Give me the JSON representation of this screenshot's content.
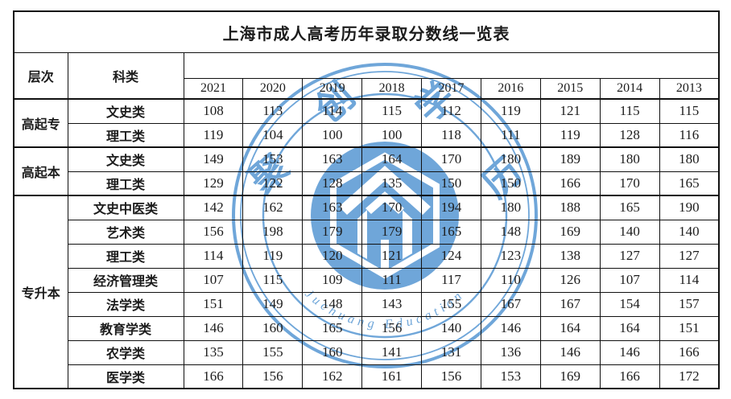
{
  "page": {
    "background": "#ffffff",
    "text_color": "#1c1c1c",
    "border_color": "#111111"
  },
  "table": {
    "title": "上海市成人高考历年录取分数线一览表",
    "level_header": "层次",
    "category_header": "科类",
    "years": [
      "2021",
      "2020",
      "2019",
      "2018",
      "2017",
      "2016",
      "2015",
      "2014",
      "2013"
    ],
    "groups": [
      {
        "level": "高起专",
        "rows": [
          {
            "category": "文史类",
            "values": [
              108,
              113,
              114,
              115,
              112,
              119,
              121,
              115,
              115
            ]
          },
          {
            "category": "理工类",
            "values": [
              119,
              104,
              100,
              100,
              118,
              111,
              119,
              128,
              116
            ]
          }
        ]
      },
      {
        "level": "高起本",
        "rows": [
          {
            "category": "文史类",
            "values": [
              149,
              153,
              163,
              164,
              170,
              180,
              189,
              180,
              180
            ]
          },
          {
            "category": "理工类",
            "values": [
              129,
              122,
              128,
              135,
              150,
              150,
              166,
              170,
              165
            ]
          }
        ]
      },
      {
        "level": "专升本",
        "rows": [
          {
            "category": "文史中医类",
            "values": [
              142,
              162,
              163,
              170,
              194,
              180,
              188,
              165,
              190
            ]
          },
          {
            "category": "艺术类",
            "values": [
              156,
              198,
              179,
              179,
              165,
              148,
              169,
              140,
              140
            ]
          },
          {
            "category": "理工类",
            "values": [
              114,
              119,
              120,
              121,
              124,
              123,
              138,
              127,
              127
            ]
          },
          {
            "category": "经济管理类",
            "values": [
              107,
              115,
              109,
              111,
              117,
              110,
              126,
              107,
              114
            ]
          },
          {
            "category": "法学类",
            "values": [
              151,
              149,
              148,
              143,
              155,
              167,
              167,
              154,
              157
            ]
          },
          {
            "category": "教育学类",
            "values": [
              146,
              160,
              165,
              156,
              140,
              146,
              164,
              164,
              151
            ]
          },
          {
            "category": "农学类",
            "values": [
              135,
              155,
              160,
              141,
              131,
              136,
              146,
              146,
              166
            ]
          },
          {
            "category": "医学类",
            "values": [
              166,
              156,
              162,
              161,
              156,
              153,
              169,
              166,
              172
            ]
          }
        ]
      }
    ]
  },
  "watermark": {
    "color": "#6FA6D9",
    "chars": [
      "聚",
      "创",
      "学",
      "历"
    ],
    "english": "Juchuang Education"
  }
}
